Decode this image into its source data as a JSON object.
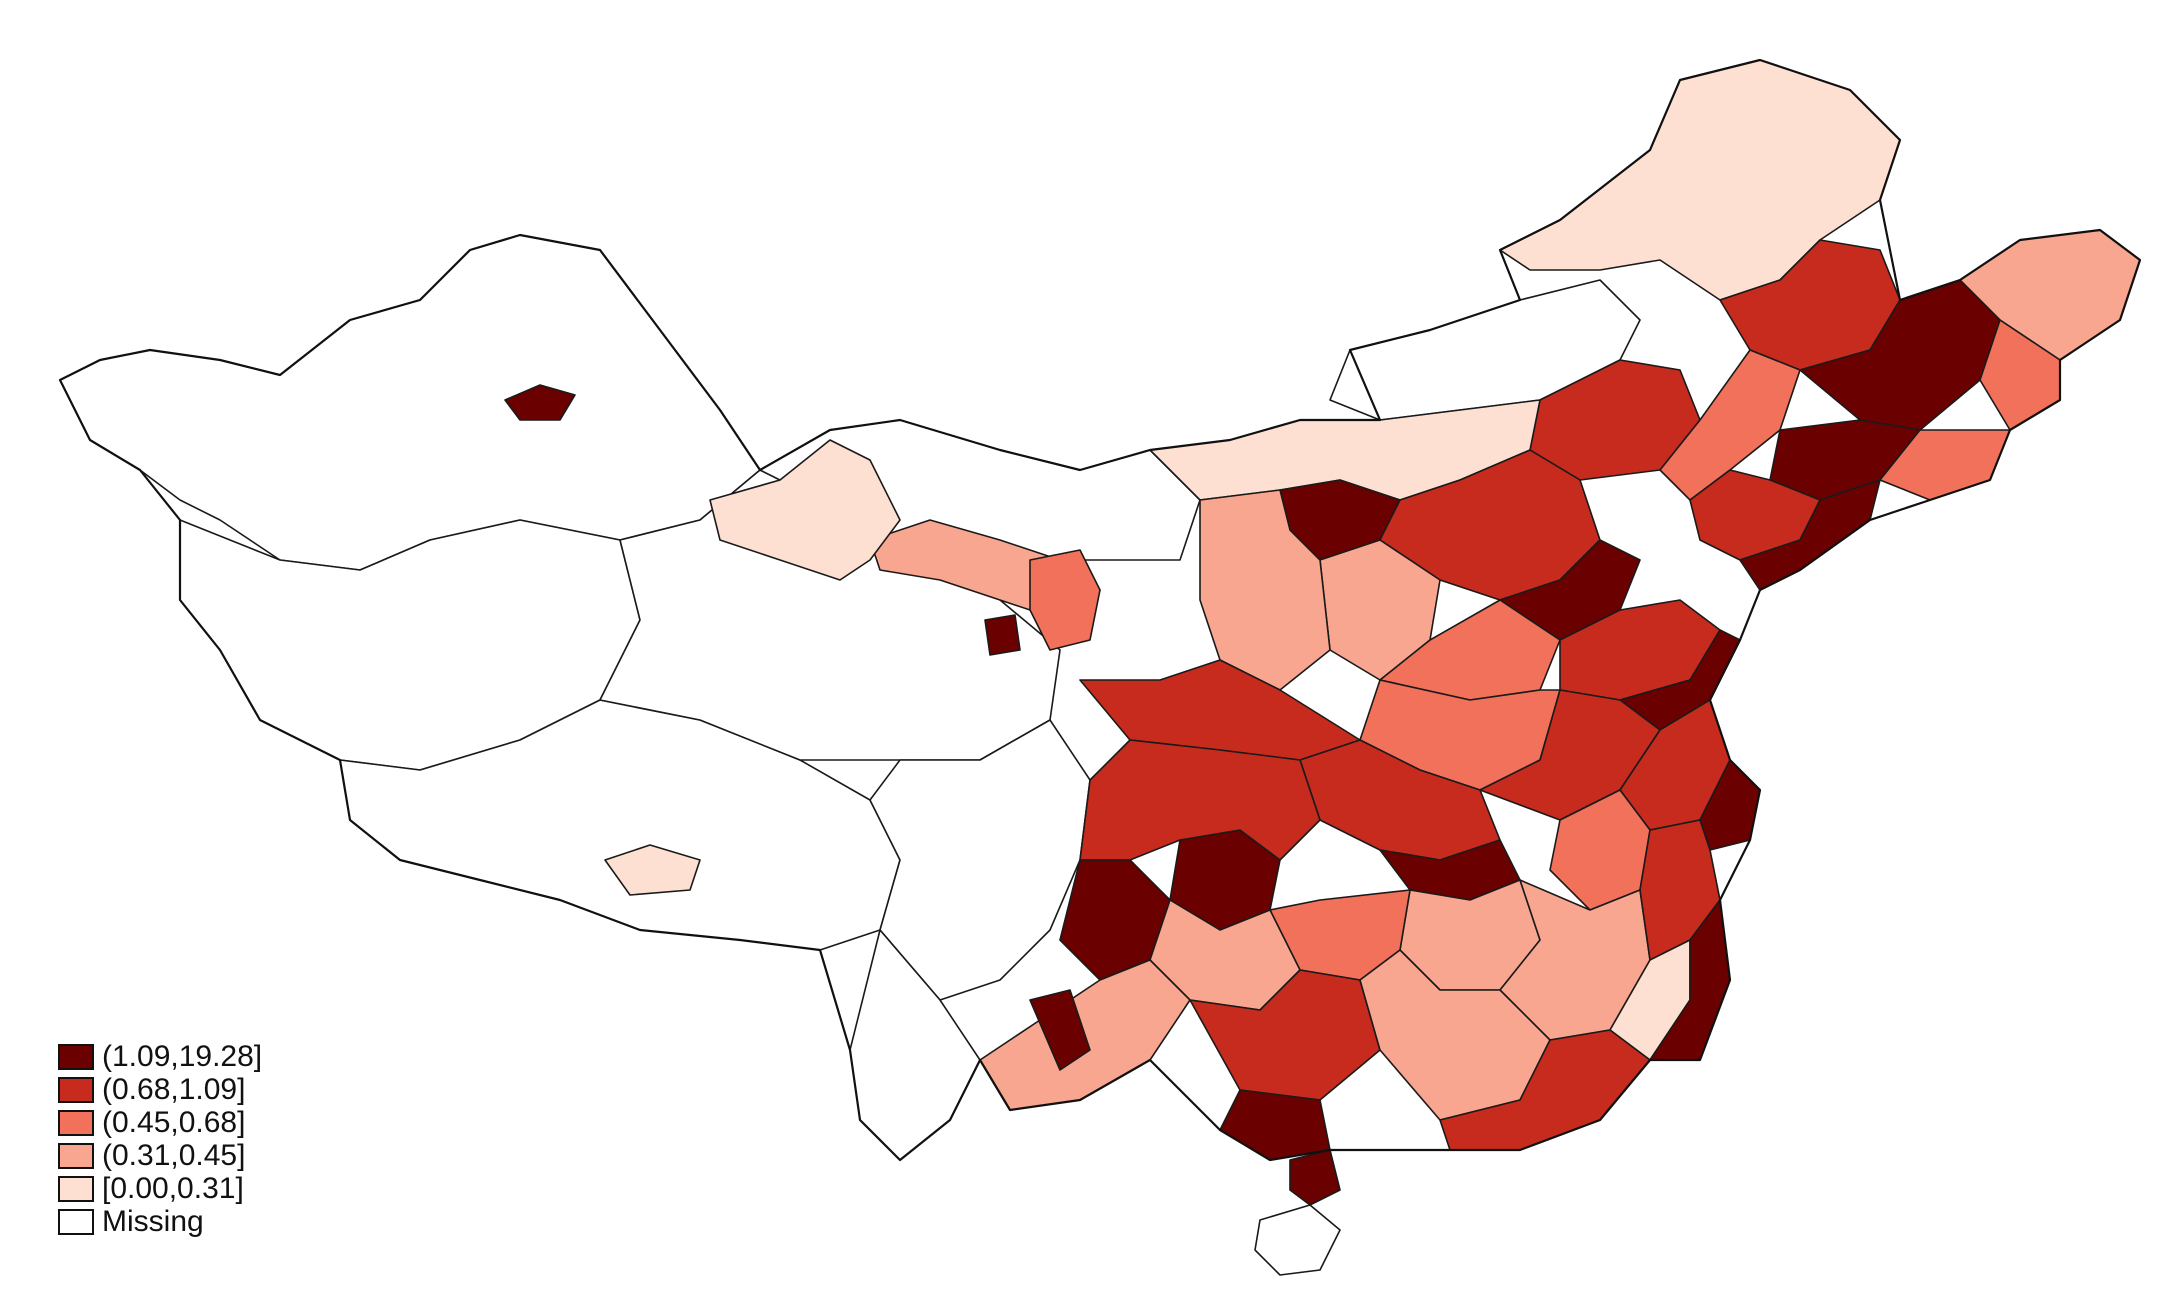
{
  "colors": {
    "c5": "#6b0000",
    "c4": "#c62b1d",
    "c3": "#f2715a",
    "c2": "#f8a68f",
    "c1": "#fde0d2",
    "missing": "#ffffff"
  },
  "legend": [
    {
      "class": "c5",
      "label": "(1.09,19.28]"
    },
    {
      "class": "c4",
      "label": "(0.68,1.09]"
    },
    {
      "class": "c3",
      "label": "(0.45,0.68]"
    },
    {
      "class": "c2",
      "label": "(0.31,0.45]"
    },
    {
      "class": "c1",
      "label": "[0.00,0.31]"
    },
    {
      "class": "missing",
      "label": "Missing"
    }
  ],
  "regions": [
    {
      "id": "hlj-north",
      "class": "c1"
    },
    {
      "id": "hlj-mid-a",
      "class": "c4"
    },
    {
      "id": "hlj-mid-b",
      "class": "c5"
    },
    {
      "id": "hlj-east",
      "class": "c2"
    },
    {
      "id": "hlj-east-b",
      "class": "c3"
    },
    {
      "id": "im-east-a",
      "class": "missing"
    },
    {
      "id": "im-east-b",
      "class": "c4"
    },
    {
      "id": "im-east-c",
      "class": "c3"
    },
    {
      "id": "jilin-a",
      "class": "c5"
    },
    {
      "id": "jilin-b",
      "class": "c3"
    },
    {
      "id": "liaoning-a",
      "class": "c4"
    },
    {
      "id": "liaoning-b",
      "class": "c5"
    },
    {
      "id": "im-central",
      "class": "c1"
    },
    {
      "id": "im-south-a",
      "class": "c5"
    },
    {
      "id": "hebei-a",
      "class": "c4"
    },
    {
      "id": "hebei-b",
      "class": "c5"
    },
    {
      "id": "shanxi-a",
      "class": "c2"
    },
    {
      "id": "shanxi-b",
      "class": "c3"
    },
    {
      "id": "shandong-a",
      "class": "c4"
    },
    {
      "id": "shandong-b",
      "class": "c5"
    },
    {
      "id": "henan-a",
      "class": "c3"
    },
    {
      "id": "henan-b",
      "class": "c4"
    },
    {
      "id": "shaanxi-a",
      "class": "c2"
    },
    {
      "id": "shaanxi-b",
      "class": "c4"
    },
    {
      "id": "gansu-corr",
      "class": "c2"
    },
    {
      "id": "gansu-west",
      "class": "c1"
    },
    {
      "id": "ningxia",
      "class": "c3"
    },
    {
      "id": "jiangsu",
      "class": "c4"
    },
    {
      "id": "shanghai",
      "class": "c5"
    },
    {
      "id": "anhui",
      "class": "c3"
    },
    {
      "id": "hubei-a",
      "class": "c4"
    },
    {
      "id": "hubei-b",
      "class": "c5"
    },
    {
      "id": "chongqing",
      "class": "c5"
    },
    {
      "id": "sichuan-east",
      "class": "c4"
    },
    {
      "id": "hunan-a",
      "class": "c2"
    },
    {
      "id": "hunan-b",
      "class": "c3"
    },
    {
      "id": "jiangxi",
      "class": "c2"
    },
    {
      "id": "zhejiang",
      "class": "c4"
    },
    {
      "id": "fujian-a",
      "class": "c1"
    },
    {
      "id": "fujian-b",
      "class": "c5"
    },
    {
      "id": "guizhou-a",
      "class": "c5"
    },
    {
      "id": "guizhou-b",
      "class": "c2"
    },
    {
      "id": "guangxi-a",
      "class": "c4"
    },
    {
      "id": "guangxi-b",
      "class": "c5"
    },
    {
      "id": "guangdong-a",
      "class": "c2"
    },
    {
      "id": "guangdong-b",
      "class": "c4"
    },
    {
      "id": "yunnan-a",
      "class": "c2"
    },
    {
      "id": "yunnan-b",
      "class": "c5"
    },
    {
      "id": "hainan-tip",
      "class": "c5"
    },
    {
      "id": "xinjiang-spot",
      "class": "c5"
    },
    {
      "id": "tibet-spot",
      "class": "c1"
    },
    {
      "id": "qinghai-spot",
      "class": "c5"
    }
  ]
}
